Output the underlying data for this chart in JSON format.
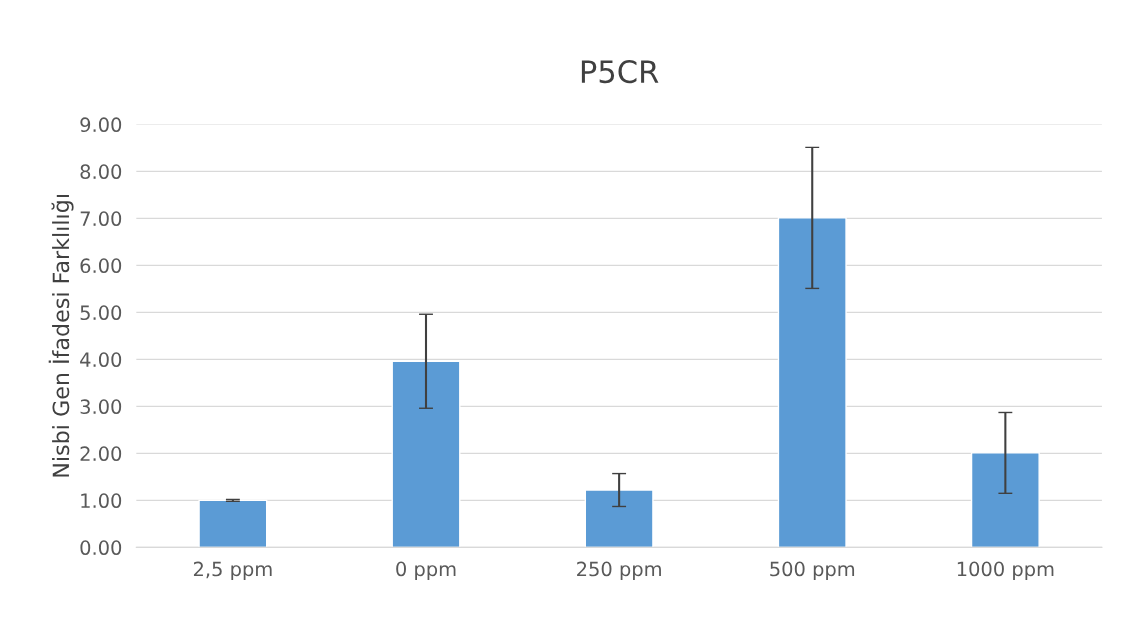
{
  "chart_data": {
    "type": "bar",
    "title": "P5CR",
    "ylabel": "Nisbi Gen İfadesi Farklılığı",
    "categories": [
      "2,5 ppm",
      "0 ppm",
      "250 ppm",
      "500 ppm",
      "1000 ppm"
    ],
    "values": [
      1.0,
      3.96,
      1.22,
      7.01,
      2.01
    ],
    "errors": [
      0.02,
      1.0,
      0.35,
      1.5,
      0.86
    ],
    "color": "#5b9bd5",
    "ylim": [
      0,
      9
    ],
    "yticks": [
      {
        "value": 0,
        "label": "0.00"
      },
      {
        "value": 1,
        "label": "1.00"
      },
      {
        "value": 2,
        "label": "2.00"
      },
      {
        "value": 3,
        "label": "3.00"
      },
      {
        "value": 4,
        "label": "4.00"
      },
      {
        "value": 5,
        "label": "5.00"
      },
      {
        "value": 6,
        "label": "6.00"
      },
      {
        "value": 7,
        "label": "7.00"
      },
      {
        "value": 8,
        "label": "8.00"
      },
      {
        "value": 9,
        "label": "9.00"
      }
    ],
    "grid": "y"
  }
}
